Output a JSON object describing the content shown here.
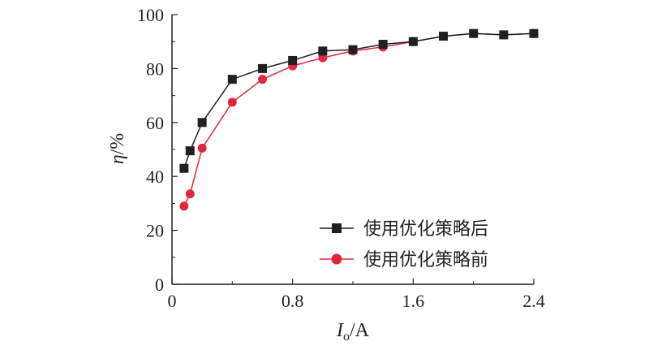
{
  "chart_data": {
    "type": "line",
    "xlabel_main": "I",
    "xlabel_sub": "o",
    "xlabel_unit": "/A",
    "ylabel_main": "η",
    "ylabel_unit": "/%",
    "xlim": [
      0,
      2.4
    ],
    "ylim": [
      0,
      100
    ],
    "xticks": [
      0,
      0.8,
      1.6,
      2.4
    ],
    "xtick_labels": [
      "0",
      "0.8",
      "1.6",
      "2.4"
    ],
    "yticks": [
      0,
      20,
      40,
      60,
      80,
      100
    ],
    "ytick_labels": [
      "0",
      "20",
      "40",
      "60",
      "80",
      "100"
    ],
    "grid": false,
    "legend_position": "bottom-right",
    "series": [
      {
        "name": "使用优化策略后",
        "marker": "square",
        "color": "#231f20",
        "x": [
          0.08,
          0.12,
          0.2,
          0.4,
          0.6,
          0.8,
          1.0,
          1.2,
          1.4,
          1.6,
          1.8,
          2.0,
          2.2,
          2.4
        ],
        "y": [
          43,
          49.5,
          60,
          76,
          80,
          83,
          86.5,
          87,
          89,
          90,
          92,
          93,
          92.5,
          93
        ]
      },
      {
        "name": "使用优化策略前",
        "marker": "circle",
        "color": "#e0283d",
        "x": [
          0.08,
          0.12,
          0.2,
          0.4,
          0.6,
          0.8,
          1.0,
          1.2,
          1.4,
          1.6,
          1.8,
          2.0,
          2.2,
          2.4
        ],
        "y": [
          29,
          33.5,
          50.5,
          67.5,
          76,
          81,
          84,
          86.5,
          88,
          90,
          92,
          93,
          92.5,
          93
        ]
      }
    ]
  }
}
